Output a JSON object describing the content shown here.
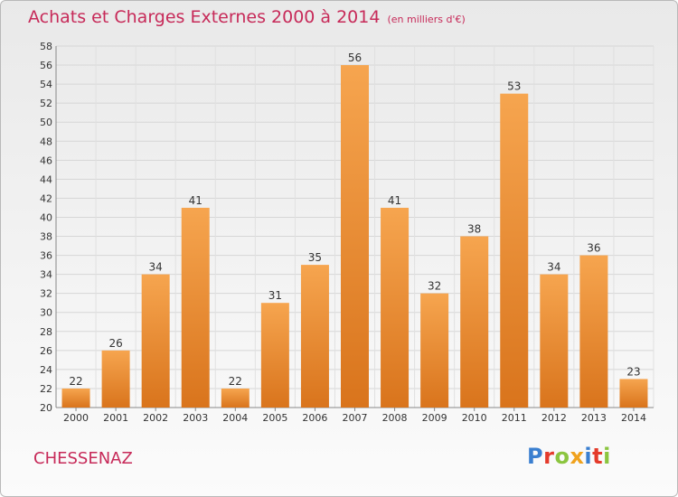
{
  "header": {
    "title": "Achats et Charges Externes 2000 à 2014",
    "subtitle": "(en milliers d'€)"
  },
  "footer": {
    "commune": "CHESSENAZ",
    "logo": "Proxiti"
  },
  "colors": {
    "title": "#c72a59",
    "bar_top": "#f6a54f",
    "bar_bottom": "#d9741c"
  },
  "chart_data": {
    "type": "bar",
    "categories": [
      "2000",
      "2001",
      "2002",
      "2003",
      "2004",
      "2005",
      "2006",
      "2007",
      "2008",
      "2009",
      "2010",
      "2011",
      "2012",
      "2013",
      "2014"
    ],
    "values": [
      22,
      26,
      34,
      41,
      22,
      31,
      35,
      56,
      41,
      32,
      38,
      53,
      34,
      36,
      23
    ],
    "title": "Achats et Charges Externes 2000 à 2014",
    "subtitle": "(en milliers d'€)",
    "ylim": [
      20,
      58
    ],
    "yticks": [
      20,
      22,
      24,
      26,
      28,
      30,
      32,
      34,
      36,
      38,
      40,
      42,
      44,
      46,
      48,
      50,
      52,
      54,
      56,
      58
    ],
    "grid": true,
    "data_labels": true
  }
}
